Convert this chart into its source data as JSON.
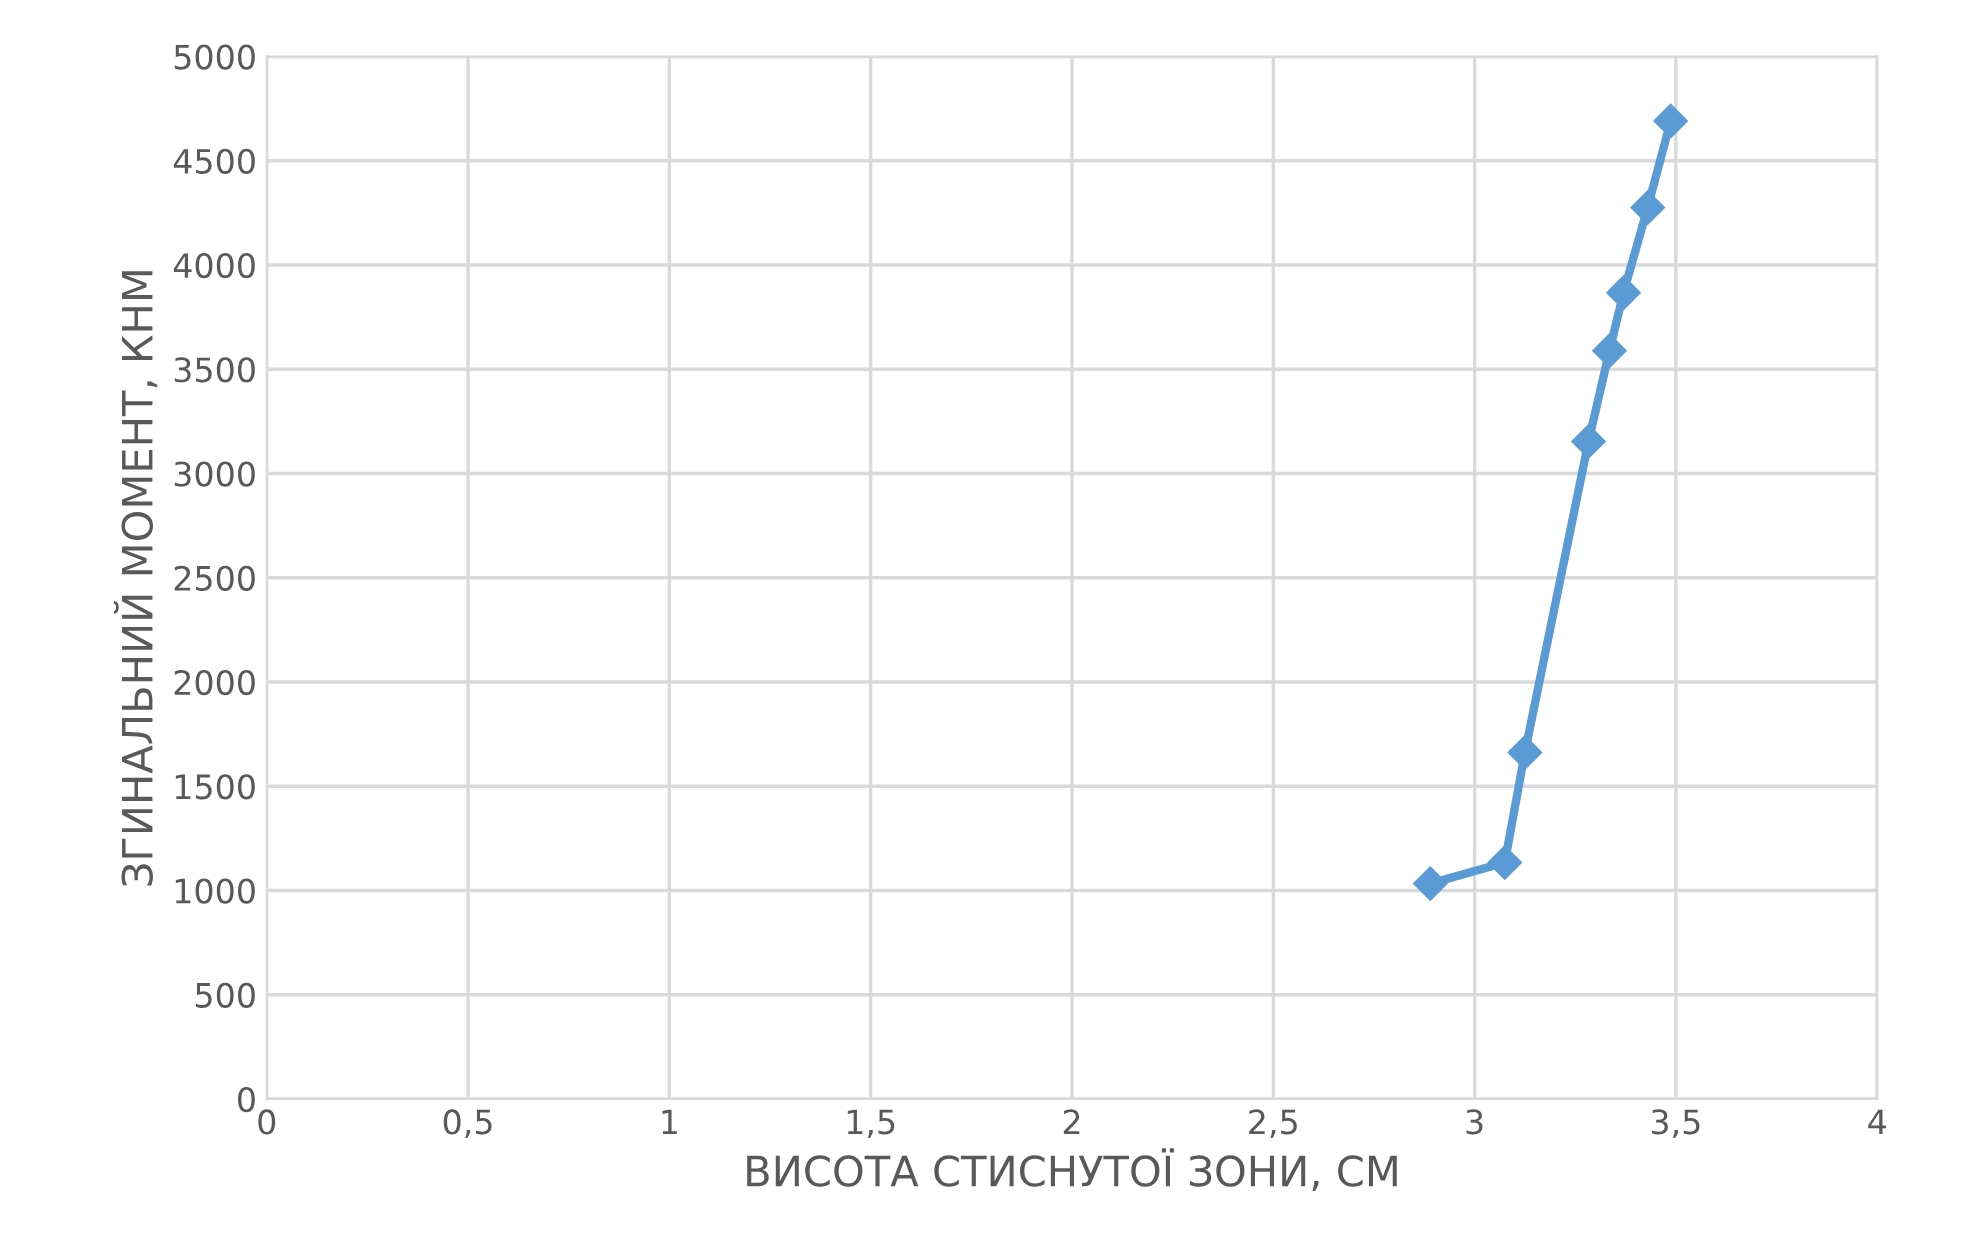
{
  "chart_data": {
    "type": "line",
    "xlabel": "ВИСОТА СТИСНУТОЇ ЗОНИ, СМ",
    "ylabel": "ЗГИНАЛЬНИЙ МОМЕНТ, КНМ",
    "x": [
      2.89,
      3.075,
      3.125,
      3.283,
      3.335,
      3.37,
      3.43,
      3.487
    ],
    "series": [
      {
        "color": "#5b9bd5",
        "values": [
          1033,
          1134,
          1662,
          3154,
          3589,
          3867,
          4276,
          4691
        ]
      }
    ],
    "xlim": [
      0,
      4
    ],
    "xticks": [
      0,
      {
        "value": 0.5,
        "label": "0,5"
      },
      1,
      {
        "value": 1.5,
        "label": "1,5"
      },
      2,
      {
        "value": 2.5,
        "label": "2,5"
      },
      3,
      {
        "value": 3.5,
        "label": "3,5"
      },
      4
    ],
    "ylim": [
      0,
      5000
    ],
    "yticks": [
      0,
      500,
      1000,
      1500,
      2000,
      2500,
      3000,
      3500,
      4000,
      4500,
      5000
    ],
    "grid": true,
    "marker": "diamond",
    "line_style": "solid"
  }
}
